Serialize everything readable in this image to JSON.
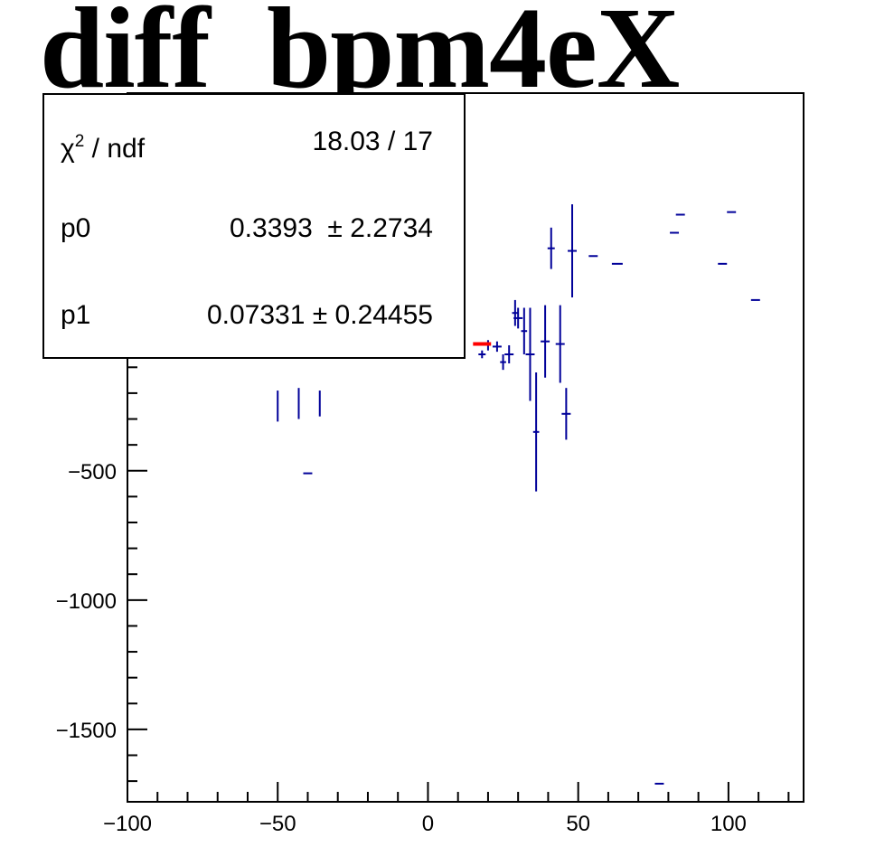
{
  "chart_data": {
    "type": "scatter",
    "title": "diff_bpm4eX",
    "xlim": [
      -100,
      125
    ],
    "ylim": [
      -1780,
      960
    ],
    "x_ticks": [
      -100,
      -50,
      0,
      50,
      100
    ],
    "y_ticks": [
      -1500,
      -1000,
      -500
    ],
    "series": [
      {
        "kind": "data",
        "color": "#000099",
        "points": [
          {
            "x": -50,
            "y": -250,
            "xerr": 0,
            "yerr": 60
          },
          {
            "x": -43,
            "y": -240,
            "xerr": 0,
            "yerr": 60
          },
          {
            "x": -40,
            "y": -510,
            "xerr": 1.5,
            "yerr": 0
          },
          {
            "x": -36,
            "y": -240,
            "xerr": 0,
            "yerr": 50
          },
          {
            "x": 18,
            "y": -50,
            "xerr": 1.2,
            "yerr": 15
          },
          {
            "x": 20,
            "y": -15,
            "xerr": 0,
            "yerr": 20
          },
          {
            "x": 23,
            "y": -20,
            "xerr": 1.5,
            "yerr": 20
          },
          {
            "x": 25,
            "y": -80,
            "xerr": 1,
            "yerr": 30
          },
          {
            "x": 27,
            "y": -50,
            "xerr": 1.5,
            "yerr": 35
          },
          {
            "x": 29,
            "y": 110,
            "xerr": 1,
            "yerr": 50
          },
          {
            "x": 30,
            "y": 90,
            "xerr": 1.5,
            "yerr": 40
          },
          {
            "x": 32,
            "y": 40,
            "xerr": 1,
            "yerr": 90
          },
          {
            "x": 34,
            "y": -50,
            "xerr": 1.5,
            "yerr": 180
          },
          {
            "x": 36,
            "y": -350,
            "xerr": 1,
            "yerr": 230
          },
          {
            "x": 39,
            "y": 0,
            "xerr": 1.5,
            "yerr": 140
          },
          {
            "x": 41,
            "y": 360,
            "xerr": 1.2,
            "yerr": 80
          },
          {
            "x": 44,
            "y": -10,
            "xerr": 1.5,
            "yerr": 150
          },
          {
            "x": 46,
            "y": -280,
            "xerr": 1.5,
            "yerr": 100
          },
          {
            "x": 48,
            "y": 350,
            "xerr": 1.5,
            "yerr": 180
          },
          {
            "x": 55,
            "y": 330,
            "xerr": 1.5,
            "yerr": 0
          },
          {
            "x": 63,
            "y": 300,
            "xerr": 1.8,
            "yerr": 0
          },
          {
            "x": 77,
            "y": -1710,
            "xerr": 1.5,
            "yerr": 0
          },
          {
            "x": 82,
            "y": 420,
            "xerr": 1.5,
            "yerr": 0
          },
          {
            "x": 84,
            "y": 490,
            "xerr": 1.5,
            "yerr": 0
          },
          {
            "x": 98,
            "y": 300,
            "xerr": 1.5,
            "yerr": 0
          },
          {
            "x": 101,
            "y": 500,
            "xerr": 1.5,
            "yerr": 0
          },
          {
            "x": 109,
            "y": 160,
            "xerr": 1.5,
            "yerr": 0
          }
        ]
      },
      {
        "kind": "fit",
        "color": "#ff0000",
        "x": [
          15,
          21
        ],
        "y": [
          -10,
          -10
        ]
      }
    ],
    "stats_box": {
      "rows": [
        {
          "label": "χ",
          "sup": "2",
          "label_rest": " / ndf",
          "value": "18.03 / 17"
        },
        {
          "label": "p0",
          "sup": "",
          "label_rest": "",
          "value": "0.3393  ± 2.2734"
        },
        {
          "label": "p1",
          "sup": "",
          "label_rest": "",
          "value": "0.07331 ± 0.24455"
        }
      ]
    }
  }
}
